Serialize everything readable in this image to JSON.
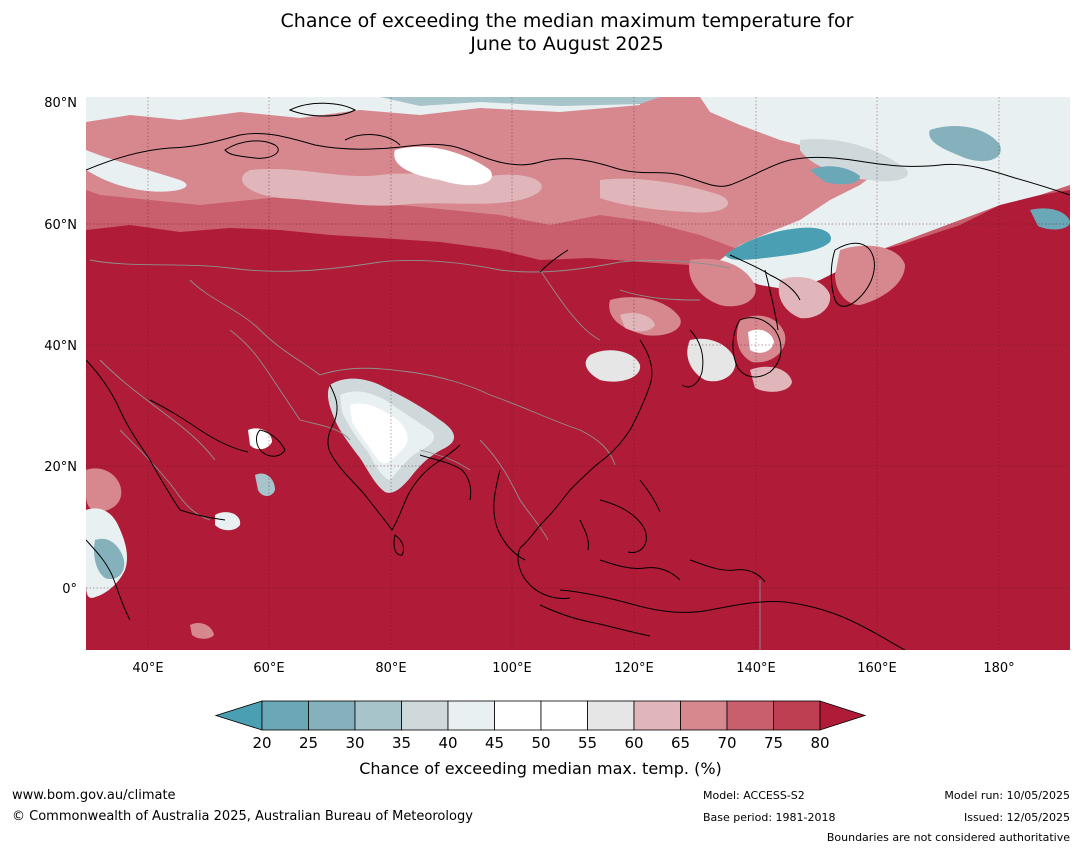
{
  "title": {
    "line1": "Chance of exceeding the median maximum temperature for",
    "line2": "June to August 2025"
  },
  "map": {
    "lat_labels": [
      "80°N",
      "60°N",
      "40°N",
      "20°N",
      "0°"
    ],
    "lon_labels": [
      "40°E",
      "60°E",
      "80°E",
      "100°E",
      "120°E",
      "140°E",
      "160°E",
      "180°"
    ],
    "colors": {
      "deep_red": "#b01c37",
      "red": "#bf3f52",
      "light_red": "#c95e6d",
      "pink": "#d7888f",
      "light_pink": "#e0b6bb",
      "pale_grey": "#e6e6e6",
      "white": "#ffffff",
      "very_light_blue": "#e9f0f1",
      "light_grey_blue": "#cfd9dc",
      "grey_blue": "#a8c4cb",
      "blue": "#85b1bc",
      "teal": "#6aa8b7",
      "deep_teal": "#4a9fb2"
    }
  },
  "legend": {
    "ticks": [
      "20",
      "25",
      "30",
      "35",
      "40",
      "45",
      "50",
      "55",
      "60",
      "65",
      "70",
      "75",
      "80"
    ],
    "colors": [
      "#6aa8b7",
      "#85b1bc",
      "#a8c4cb",
      "#cfd9dc",
      "#e9f0f1",
      "#ffffff",
      "#ffffff",
      "#e6e6e6",
      "#e0b6bb",
      "#d7888f",
      "#c95e6d",
      "#bf3f52"
    ],
    "under_color": "#4a9fb2",
    "over_color": "#b01c37",
    "label": "Chance of exceeding median max. temp. (%)"
  },
  "footer": {
    "url": "www.bom.gov.au/climate",
    "copyright": "© Commonwealth of Australia 2025, Australian Bureau of Meteorology",
    "model": "Model: ACCESS-S2",
    "base_period": "Base period: 1981-2018",
    "model_run": "Model run: 10/05/2025",
    "issued": "Issued: 12/05/2025",
    "boundaries": "Boundaries are not considered authoritative"
  }
}
